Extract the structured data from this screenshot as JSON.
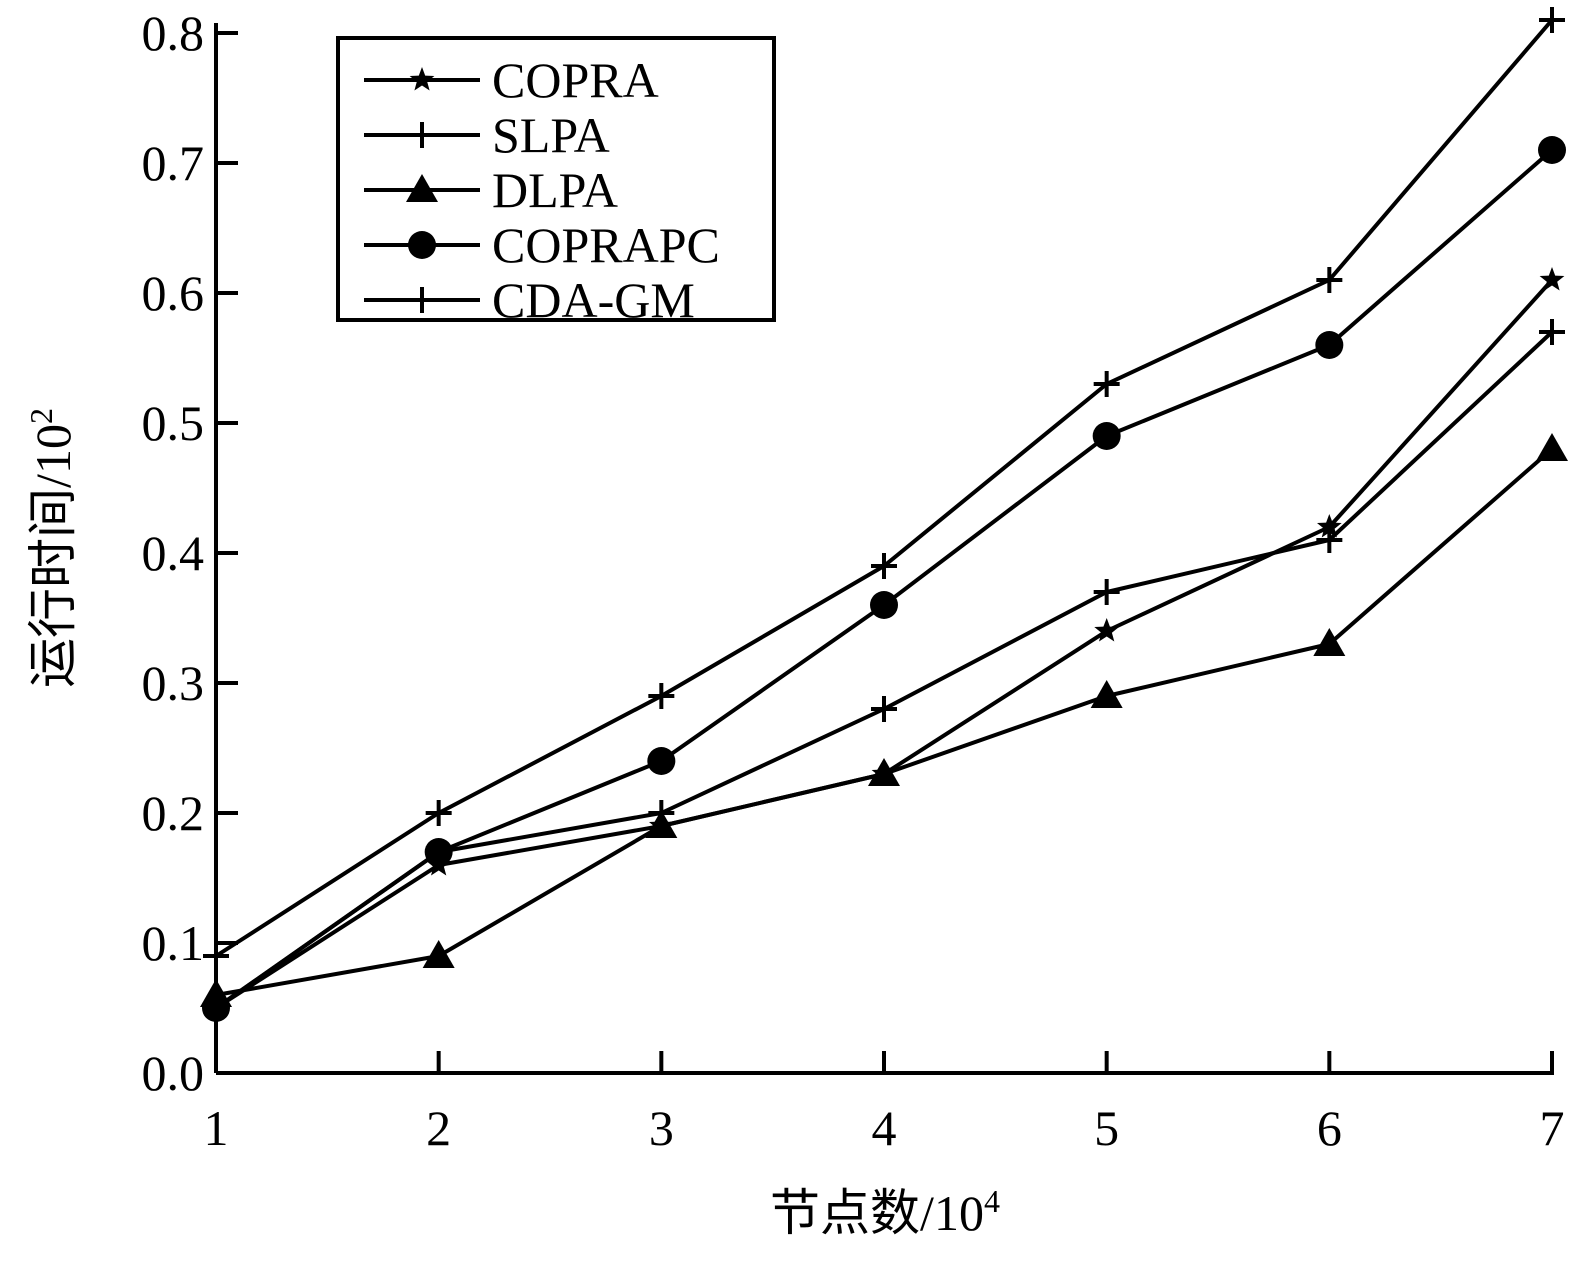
{
  "chart_data": {
    "type": "line",
    "xlabel": "节点数/10",
    "xlabel_sup": "4",
    "ylabel": "运行时间/10",
    "ylabel_sup": "2",
    "x": [
      1,
      2,
      3,
      4,
      5,
      6,
      7
    ],
    "xlim": [
      1,
      7
    ],
    "ylim": [
      0.0,
      0.8
    ],
    "xticks": [
      "1",
      "2",
      "3",
      "4",
      "5",
      "6",
      "7"
    ],
    "yticks": [
      "0.0",
      "0.1",
      "0.2",
      "0.3",
      "0.4",
      "0.5",
      "0.6",
      "0.7",
      "0.8"
    ],
    "grid": false,
    "legend_position": "top-left",
    "series": [
      {
        "name": "COPRA",
        "marker": "star",
        "values": [
          0.05,
          0.16,
          0.19,
          0.23,
          0.34,
          0.42,
          0.61
        ]
      },
      {
        "name": "SLPA",
        "marker": "plus",
        "values": [
          0.05,
          0.17,
          0.2,
          0.28,
          0.37,
          0.41,
          0.57
        ]
      },
      {
        "name": "DLPA",
        "marker": "triangle",
        "values": [
          0.06,
          0.09,
          0.19,
          0.23,
          0.29,
          0.33,
          0.48
        ]
      },
      {
        "name": "COPRAPC",
        "marker": "circle",
        "values": [
          0.05,
          0.17,
          0.24,
          0.36,
          0.49,
          0.56,
          0.71
        ]
      },
      {
        "name": "CDA-GM",
        "marker": "plus",
        "values": [
          0.09,
          0.2,
          0.29,
          0.39,
          0.53,
          0.61,
          0.81
        ]
      }
    ]
  }
}
